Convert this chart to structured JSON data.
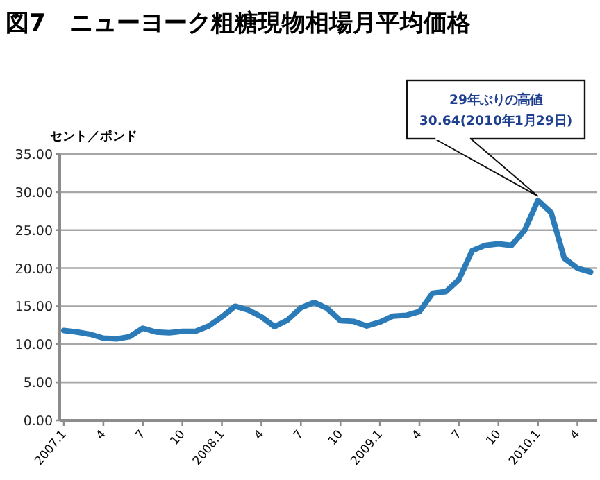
{
  "chart_data": {
    "type": "line",
    "title": "図7　ニューヨーク粗糖現物相場月平均価格",
    "ylabel": "セント／ポンド",
    "categories": [
      "2007.1",
      null,
      null,
      "4",
      null,
      null,
      "7",
      null,
      null,
      "10",
      null,
      null,
      "2008.1",
      null,
      null,
      "4",
      null,
      null,
      "7",
      null,
      null,
      "10",
      null,
      null,
      "2009.1",
      null,
      null,
      "4",
      null,
      null,
      "7",
      null,
      null,
      "10",
      null,
      null,
      "2010.1",
      null,
      null,
      "4",
      null
    ],
    "series": [
      {
        "color": "#2b7bb9",
        "values": [
          11.8,
          11.6,
          11.3,
          10.8,
          10.7,
          11.0,
          12.1,
          11.6,
          11.5,
          11.7,
          11.7,
          12.4,
          13.6,
          15.0,
          14.5,
          13.6,
          12.3,
          13.2,
          14.8,
          15.5,
          14.7,
          13.1,
          13.0,
          12.4,
          12.9,
          13.7,
          13.8,
          14.3,
          16.7,
          16.9,
          18.5,
          22.3,
          23.0,
          23.2,
          23.0,
          25.0,
          28.9,
          27.3,
          21.3,
          20.0,
          19.5
        ]
      }
    ],
    "ylim": [
      0,
      35
    ],
    "yticks": [
      {
        "value": 0,
        "label": "0.00"
      },
      {
        "value": 5,
        "label": "5.00"
      },
      {
        "value": 10,
        "label": "10.00"
      },
      {
        "value": 15,
        "label": "15.00"
      },
      {
        "value": 20,
        "label": "20.00"
      },
      {
        "value": 25,
        "label": "25.00"
      },
      {
        "value": 30,
        "label": "30.00"
      },
      {
        "value": 35,
        "label": "35.00"
      }
    ],
    "grid": "y",
    "marker": "none",
    "line_style": "solid",
    "annotations": [
      "29年ぶりの高値 30.64(2010年1月29日)"
    ]
  }
}
